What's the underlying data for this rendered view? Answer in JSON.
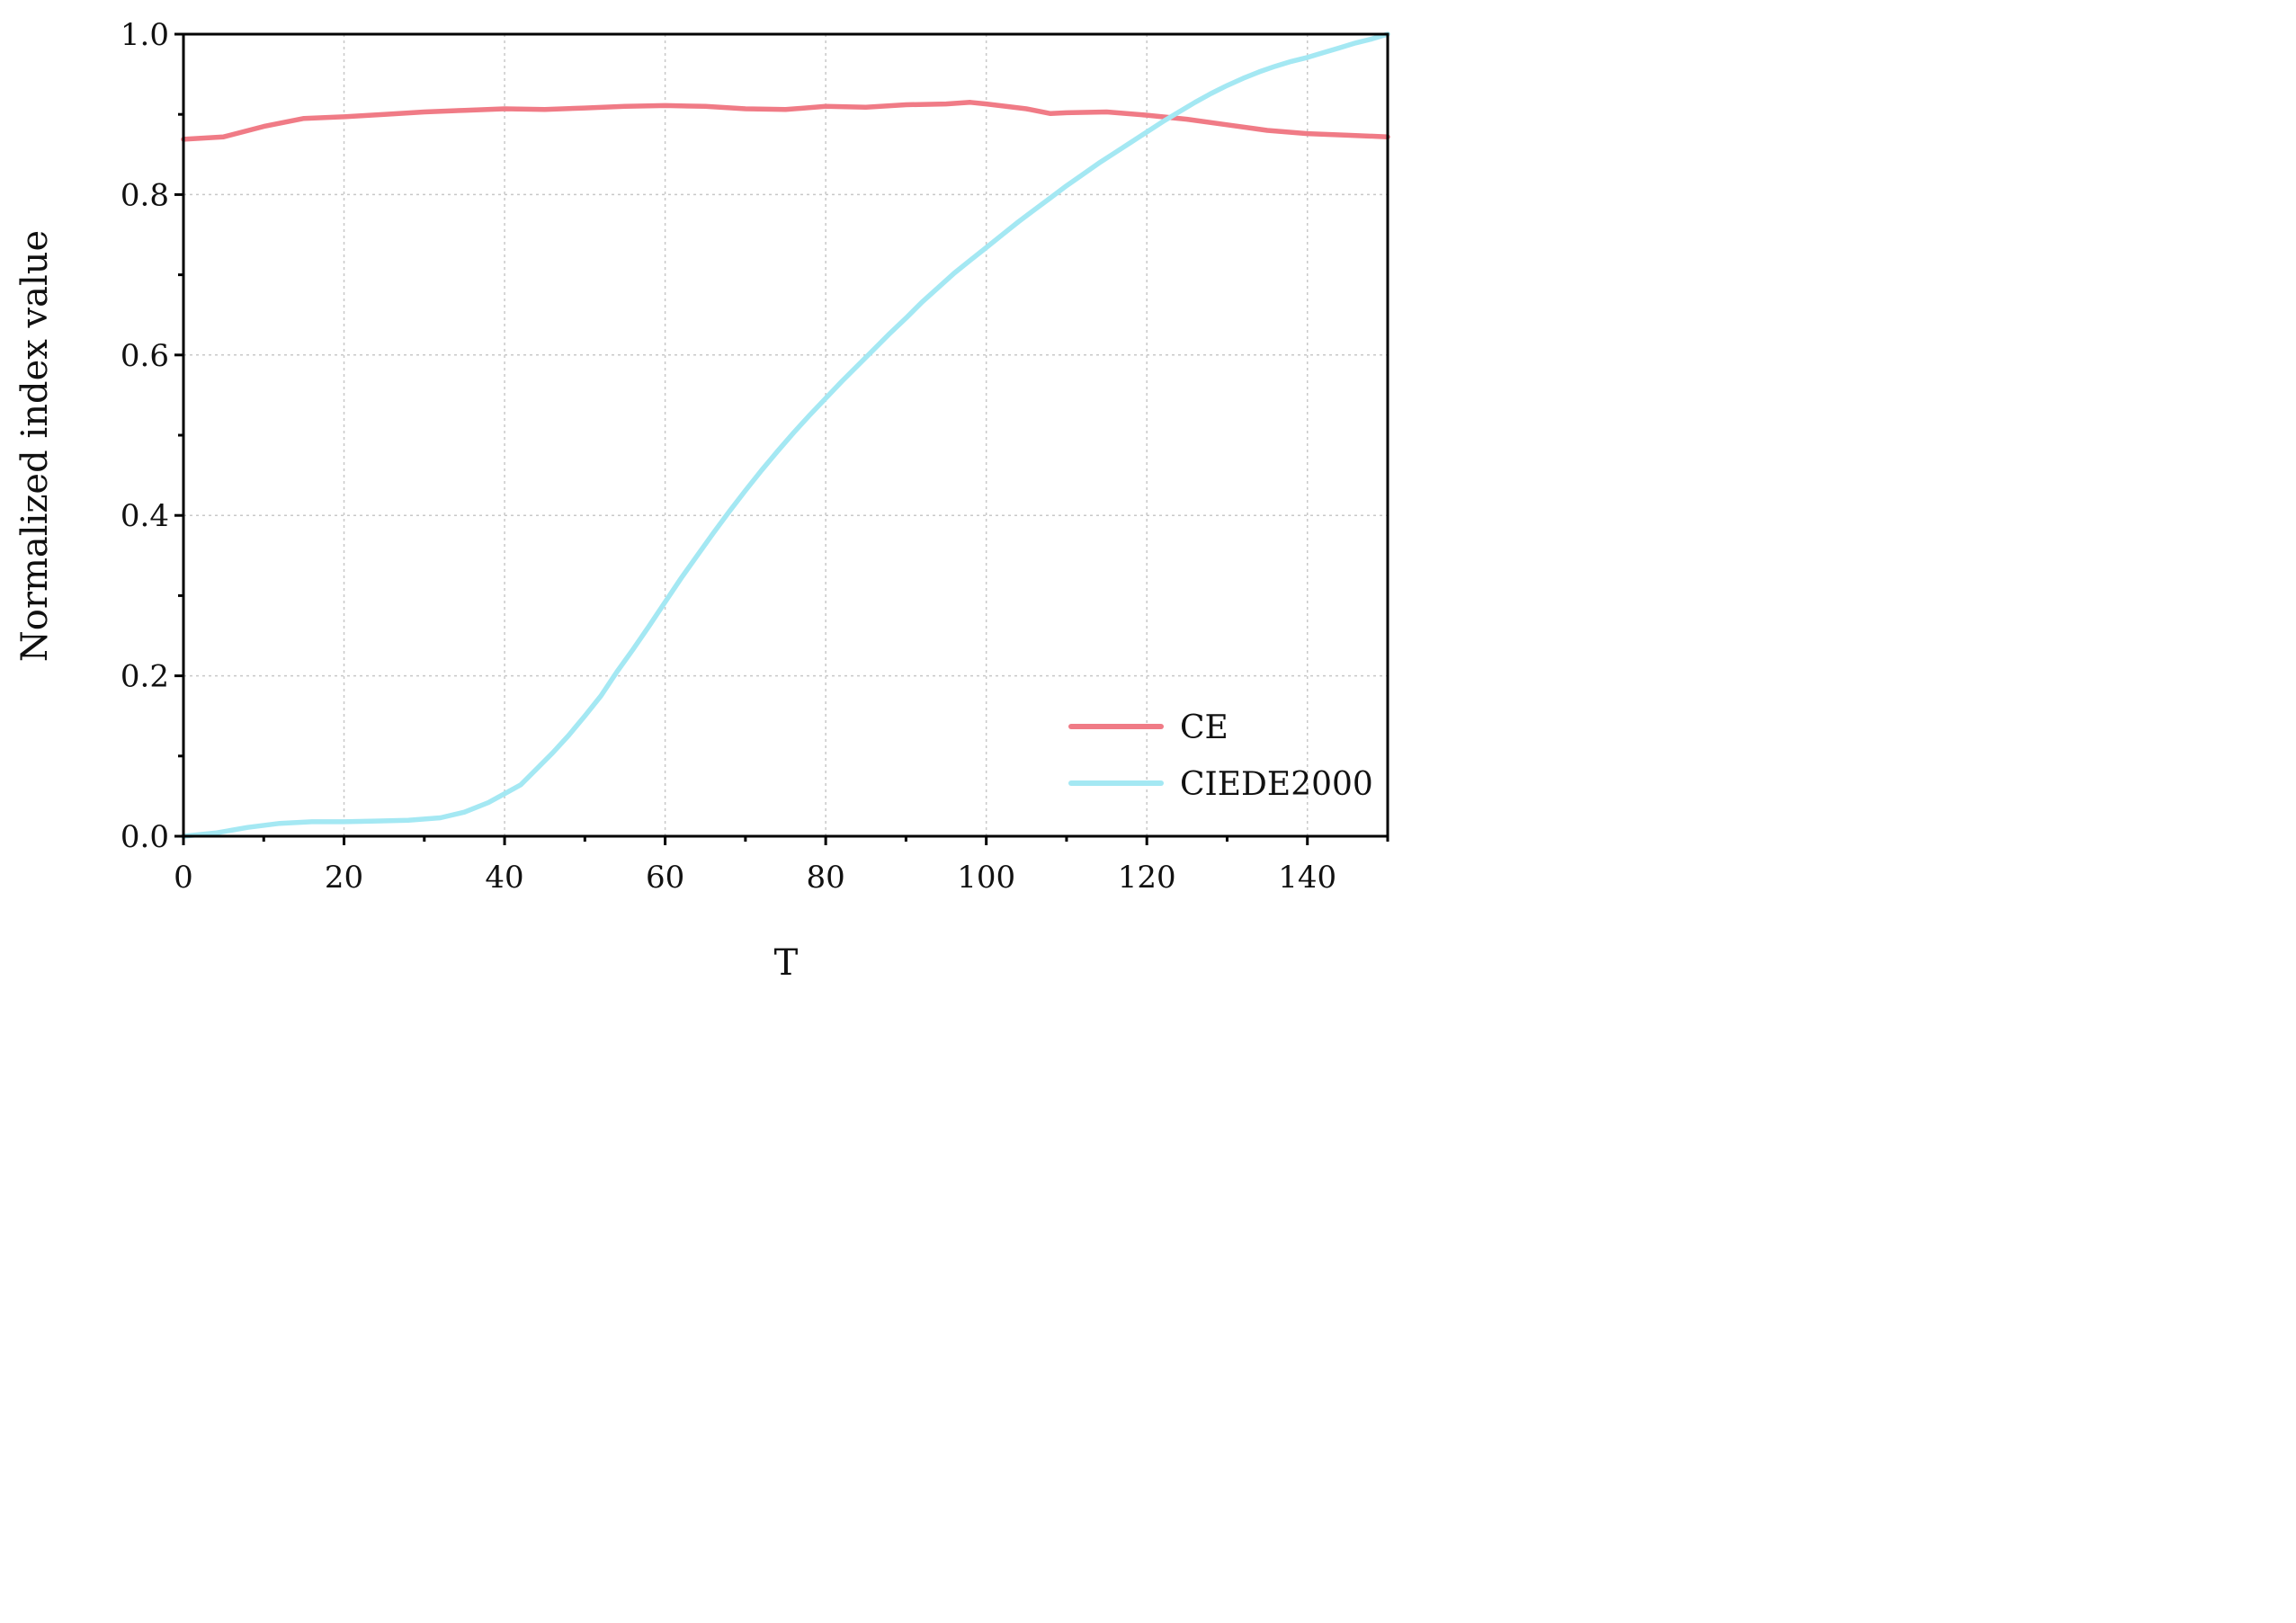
{
  "chart_data": {
    "type": "line",
    "xlabel": "T",
    "ylabel": "Normalized index value",
    "xlim": [
      0,
      150
    ],
    "ylim": [
      0.0,
      1.0
    ],
    "xticks": [
      "0",
      "20",
      "40",
      "60",
      "80",
      "100",
      "120",
      "140"
    ],
    "xtick_values": [
      0,
      20,
      40,
      60,
      80,
      100,
      120,
      140
    ],
    "yticks": [
      "0.0",
      "0.2",
      "0.4",
      "0.6",
      "0.8",
      "1.0"
    ],
    "ytick_values": [
      0.0,
      0.2,
      0.4,
      0.6,
      0.8,
      1.0
    ],
    "grid": true,
    "legend": "bottom-right",
    "series": [
      {
        "name": "CE",
        "color": "#f07b86",
        "x": [
          0,
          5,
          10,
          15,
          20,
          25,
          30,
          35,
          40,
          45,
          50,
          55,
          60,
          65,
          70,
          75,
          80,
          85,
          90,
          95,
          98,
          100,
          105,
          108,
          110,
          115,
          120,
          125,
          130,
          135,
          140,
          145,
          150
        ],
        "y": [
          0.869,
          0.872,
          0.885,
          0.895,
          0.897,
          0.9,
          0.903,
          0.905,
          0.907,
          0.906,
          0.908,
          0.91,
          0.911,
          0.91,
          0.907,
          0.906,
          0.91,
          0.909,
          0.912,
          0.913,
          0.915,
          0.913,
          0.907,
          0.901,
          0.902,
          0.903,
          0.899,
          0.894,
          0.887,
          0.88,
          0.876,
          0.874,
          0.872
        ]
      },
      {
        "name": "CIEDE2000",
        "color": "#a4e8f3",
        "x": [
          0,
          4,
          8,
          12,
          16,
          20,
          24,
          28,
          32,
          35,
          38,
          40,
          42,
          44,
          46,
          48,
          50,
          52,
          54,
          56,
          58,
          60,
          62,
          64,
          66,
          68,
          70,
          72,
          74,
          76,
          78,
          80,
          82,
          84,
          86,
          88,
          90,
          92,
          94,
          96,
          98,
          100,
          102,
          104,
          106,
          108,
          110,
          112,
          114,
          116,
          118,
          120,
          122,
          124,
          126,
          128,
          130,
          132,
          134,
          136,
          138,
          140,
          142,
          144,
          146,
          148,
          150
        ],
        "y": [
          0.0,
          0.004,
          0.011,
          0.016,
          0.018,
          0.018,
          0.019,
          0.02,
          0.023,
          0.03,
          0.042,
          0.053,
          0.064,
          0.084,
          0.104,
          0.126,
          0.15,
          0.175,
          0.205,
          0.233,
          0.262,
          0.292,
          0.322,
          0.35,
          0.378,
          0.405,
          0.431,
          0.456,
          0.48,
          0.503,
          0.525,
          0.546,
          0.567,
          0.587,
          0.607,
          0.627,
          0.646,
          0.666,
          0.684,
          0.702,
          0.718,
          0.734,
          0.75,
          0.766,
          0.781,
          0.796,
          0.811,
          0.825,
          0.839,
          0.852,
          0.865,
          0.878,
          0.891,
          0.903,
          0.915,
          0.926,
          0.936,
          0.945,
          0.953,
          0.96,
          0.966,
          0.971,
          0.977,
          0.983,
          0.989,
          0.994,
          1.0
        ]
      }
    ]
  }
}
